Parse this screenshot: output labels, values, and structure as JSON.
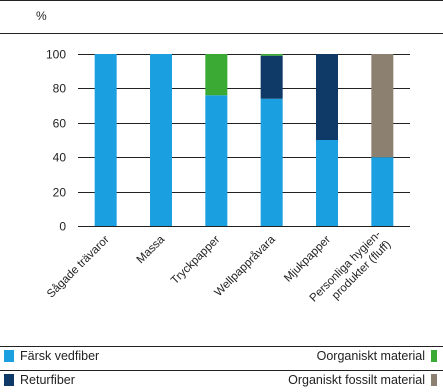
{
  "chart_data": {
    "type": "bar",
    "stacked": true,
    "unit_label": "%",
    "categories": [
      "Sågade trävaror",
      "Massa",
      "Tryckpapper",
      "Wellpappråvara",
      "Mjukpapper",
      "Personliga hygien-\nprodukter (fluff)"
    ],
    "series": [
      {
        "name": "Färsk vedfiber",
        "color": "#1a9fe0",
        "values": [
          100,
          100,
          76,
          74,
          50,
          40
        ]
      },
      {
        "name": "Returfiber",
        "color": "#0f3a68",
        "values": [
          0,
          0,
          0,
          25,
          50,
          0
        ]
      },
      {
        "name": "Oorganiskt material",
        "color": "#3aaa35",
        "values": [
          0,
          0,
          24,
          1,
          0,
          0
        ]
      },
      {
        "name": "Organiskt fossilt material",
        "color": "#8c8070",
        "values": [
          0,
          0,
          0,
          0,
          0,
          60
        ]
      }
    ],
    "ylim": [
      0,
      100
    ],
    "yticks": [
      0,
      20,
      40,
      60,
      80,
      100
    ],
    "grid": true
  }
}
